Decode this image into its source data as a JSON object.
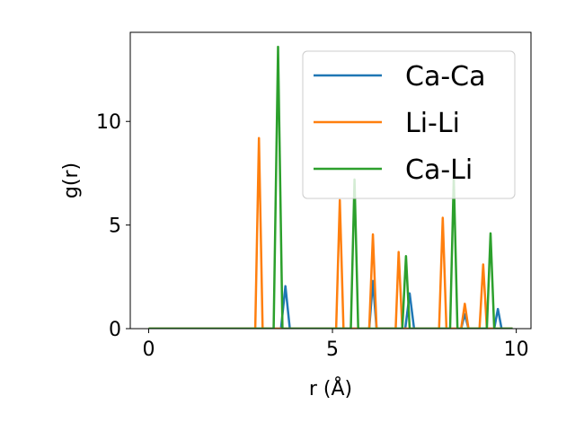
{
  "chart_data": {
    "type": "line",
    "xlabel": "r (Å)",
    "ylabel": "g(r)",
    "xlim": [
      -0.5,
      10.4
    ],
    "ylim": [
      0,
      14.3
    ],
    "xticks": [
      0,
      5,
      10
    ],
    "yticks": [
      0,
      5,
      10
    ],
    "grid": false,
    "legend_position": "top-right",
    "series": [
      {
        "name": "Ca-Ca",
        "color": "#1f77b4",
        "points": [
          [
            0,
            0
          ],
          [
            3.6,
            0
          ],
          [
            3.72,
            2.05
          ],
          [
            3.84,
            0
          ],
          [
            6.0,
            0
          ],
          [
            6.1,
            2.3
          ],
          [
            6.2,
            0
          ],
          [
            6.98,
            0
          ],
          [
            7.1,
            1.7
          ],
          [
            7.22,
            0
          ],
          [
            8.5,
            0
          ],
          [
            8.6,
            0.7
          ],
          [
            8.7,
            0
          ],
          [
            9.4,
            0
          ],
          [
            9.5,
            0.95
          ],
          [
            9.6,
            0
          ],
          [
            9.9,
            0
          ]
        ]
      },
      {
        "name": "Li-Li",
        "color": "#ff7f0e",
        "points": [
          [
            0,
            0
          ],
          [
            2.9,
            0
          ],
          [
            3.0,
            9.2
          ],
          [
            3.1,
            0
          ],
          [
            5.1,
            0
          ],
          [
            5.2,
            6.2
          ],
          [
            5.3,
            0
          ],
          [
            6.0,
            0
          ],
          [
            6.1,
            4.55
          ],
          [
            6.2,
            0
          ],
          [
            6.72,
            0
          ],
          [
            6.8,
            3.7
          ],
          [
            6.9,
            0
          ],
          [
            7.9,
            0
          ],
          [
            8.0,
            5.35
          ],
          [
            8.1,
            0
          ],
          [
            8.5,
            0
          ],
          [
            8.6,
            1.2
          ],
          [
            8.7,
            0
          ],
          [
            9.0,
            0
          ],
          [
            9.1,
            3.1
          ],
          [
            9.2,
            0
          ],
          [
            9.9,
            0
          ]
        ]
      },
      {
        "name": "Ca-Li",
        "color": "#2ca02c",
        "points": [
          [
            0,
            0
          ],
          [
            3.4,
            0
          ],
          [
            3.52,
            13.6
          ],
          [
            3.64,
            0
          ],
          [
            5.5,
            0
          ],
          [
            5.6,
            7.2
          ],
          [
            5.7,
            0
          ],
          [
            6.9,
            0
          ],
          [
            7.0,
            3.5
          ],
          [
            7.1,
            0
          ],
          [
            8.2,
            0
          ],
          [
            8.3,
            7.3
          ],
          [
            8.4,
            0
          ],
          [
            9.2,
            0
          ],
          [
            9.3,
            4.6
          ],
          [
            9.4,
            0
          ],
          [
            9.9,
            0
          ]
        ]
      }
    ]
  }
}
